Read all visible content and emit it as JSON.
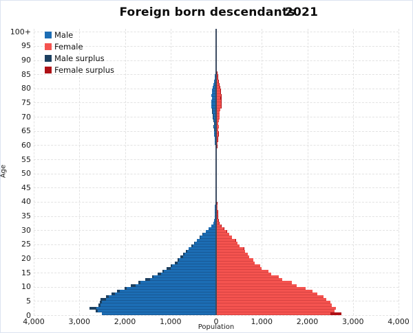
{
  "title": {
    "main": "Foreign born descendants",
    "year": "2021"
  },
  "axes": {
    "y_label": "Age",
    "x_label": "Population",
    "x_tick_labels": [
      "4,000",
      "3,000",
      "2,000",
      "1,000",
      "0",
      "1,000",
      "2,000",
      "3,000",
      "4,000"
    ],
    "y_tick_labels": [
      "0",
      "5",
      "10",
      "15",
      "20",
      "25",
      "30",
      "35",
      "40",
      "45",
      "50",
      "55",
      "60",
      "65",
      "70",
      "75",
      "80",
      "85",
      "90",
      "95",
      "100+"
    ]
  },
  "legend": {
    "items": [
      {
        "label": "Male",
        "color": "#1c6db4"
      },
      {
        "label": "Female",
        "color": "#f4534f"
      },
      {
        "label": "Male surplus",
        "color": "#1d4060"
      },
      {
        "label": "Female surplus",
        "color": "#ae1016"
      }
    ]
  },
  "chart_data": {
    "type": "bar",
    "variant": "population_pyramid",
    "title": "Foreign born descendants",
    "year_label": "2021",
    "xlabel": "Population",
    "ylabel": "Age",
    "xlim": [
      -4000,
      4000
    ],
    "grid": true,
    "legend_position": "top-left",
    "age_range": {
      "min": 0,
      "max": 100,
      "top_label": "100+",
      "bin_years": 1
    },
    "x_ticks": {
      "values": [
        -4000,
        -3000,
        -2000,
        -1000,
        0,
        1000,
        2000,
        3000,
        4000
      ],
      "labels": [
        "4,000",
        "3,000",
        "2,000",
        "1,000",
        "0",
        "1,000",
        "2,000",
        "3,000",
        "4,000"
      ]
    },
    "y_ticks": {
      "step": 5,
      "labels": [
        "0",
        "5",
        "10",
        "15",
        "20",
        "25",
        "30",
        "35",
        "40",
        "45",
        "50",
        "55",
        "60",
        "65",
        "70",
        "75",
        "80",
        "85",
        "90",
        "95",
        "100+"
      ]
    },
    "series": [
      {
        "name": "Male",
        "side": "left",
        "color": "#1c6db4",
        "values": [
          2510,
          2640,
          2770,
          2580,
          2550,
          2530,
          2410,
          2300,
          2170,
          2010,
          1870,
          1700,
          1550,
          1410,
          1290,
          1180,
          1080,
          990,
          910,
          840,
          780,
          720,
          660,
          600,
          540,
          480,
          420,
          360,
          300,
          230,
          160,
          100,
          65,
          45,
          35,
          30,
          28,
          26,
          24,
          22,
          21,
          20,
          19,
          18,
          17,
          17,
          16,
          16,
          15,
          15,
          15,
          14,
          14,
          15,
          15,
          16,
          17,
          18,
          20,
          22,
          25,
          28,
          32,
          38,
          45,
          52,
          58,
          50,
          62,
          72,
          78,
          84,
          92,
          100,
          106,
          102,
          96,
          100,
          94,
          84,
          68,
          54,
          44,
          34,
          27,
          21,
          17,
          14,
          11,
          9,
          8,
          7,
          6,
          5,
          5,
          4,
          4,
          3,
          3,
          2,
          2
        ]
      },
      {
        "name": "Female",
        "side": "right",
        "color": "#f4534f",
        "values": [
          2750,
          2600,
          2620,
          2540,
          2500,
          2420,
          2360,
          2220,
          2120,
          1960,
          1760,
          1660,
          1450,
          1380,
          1200,
          1150,
          1000,
          970,
          850,
          820,
          720,
          700,
          640,
          610,
          520,
          470,
          430,
          350,
          290,
          235,
          165,
          105,
          70,
          50,
          38,
          33,
          30,
          27,
          25,
          23,
          22,
          21,
          20,
          19,
          18,
          17,
          17,
          16,
          16,
          15,
          15,
          15,
          15,
          15,
          16,
          17,
          18,
          19,
          21,
          23,
          26,
          30,
          35,
          42,
          50,
          48,
          54,
          46,
          58,
          68,
          76,
          82,
          90,
          106,
          112,
          118,
          122,
          112,
          98,
          88,
          72,
          58,
          46,
          36,
          29,
          23,
          18,
          15,
          12,
          10,
          9,
          8,
          7,
          6,
          5,
          5,
          4,
          4,
          3,
          3,
          2
        ]
      },
      {
        "name": "Male surplus",
        "color": "#1d4060",
        "derived": "max(male - female, 0)"
      },
      {
        "name": "Female surplus",
        "color": "#ae1016",
        "derived": "max(female - male, 0)"
      }
    ]
  }
}
